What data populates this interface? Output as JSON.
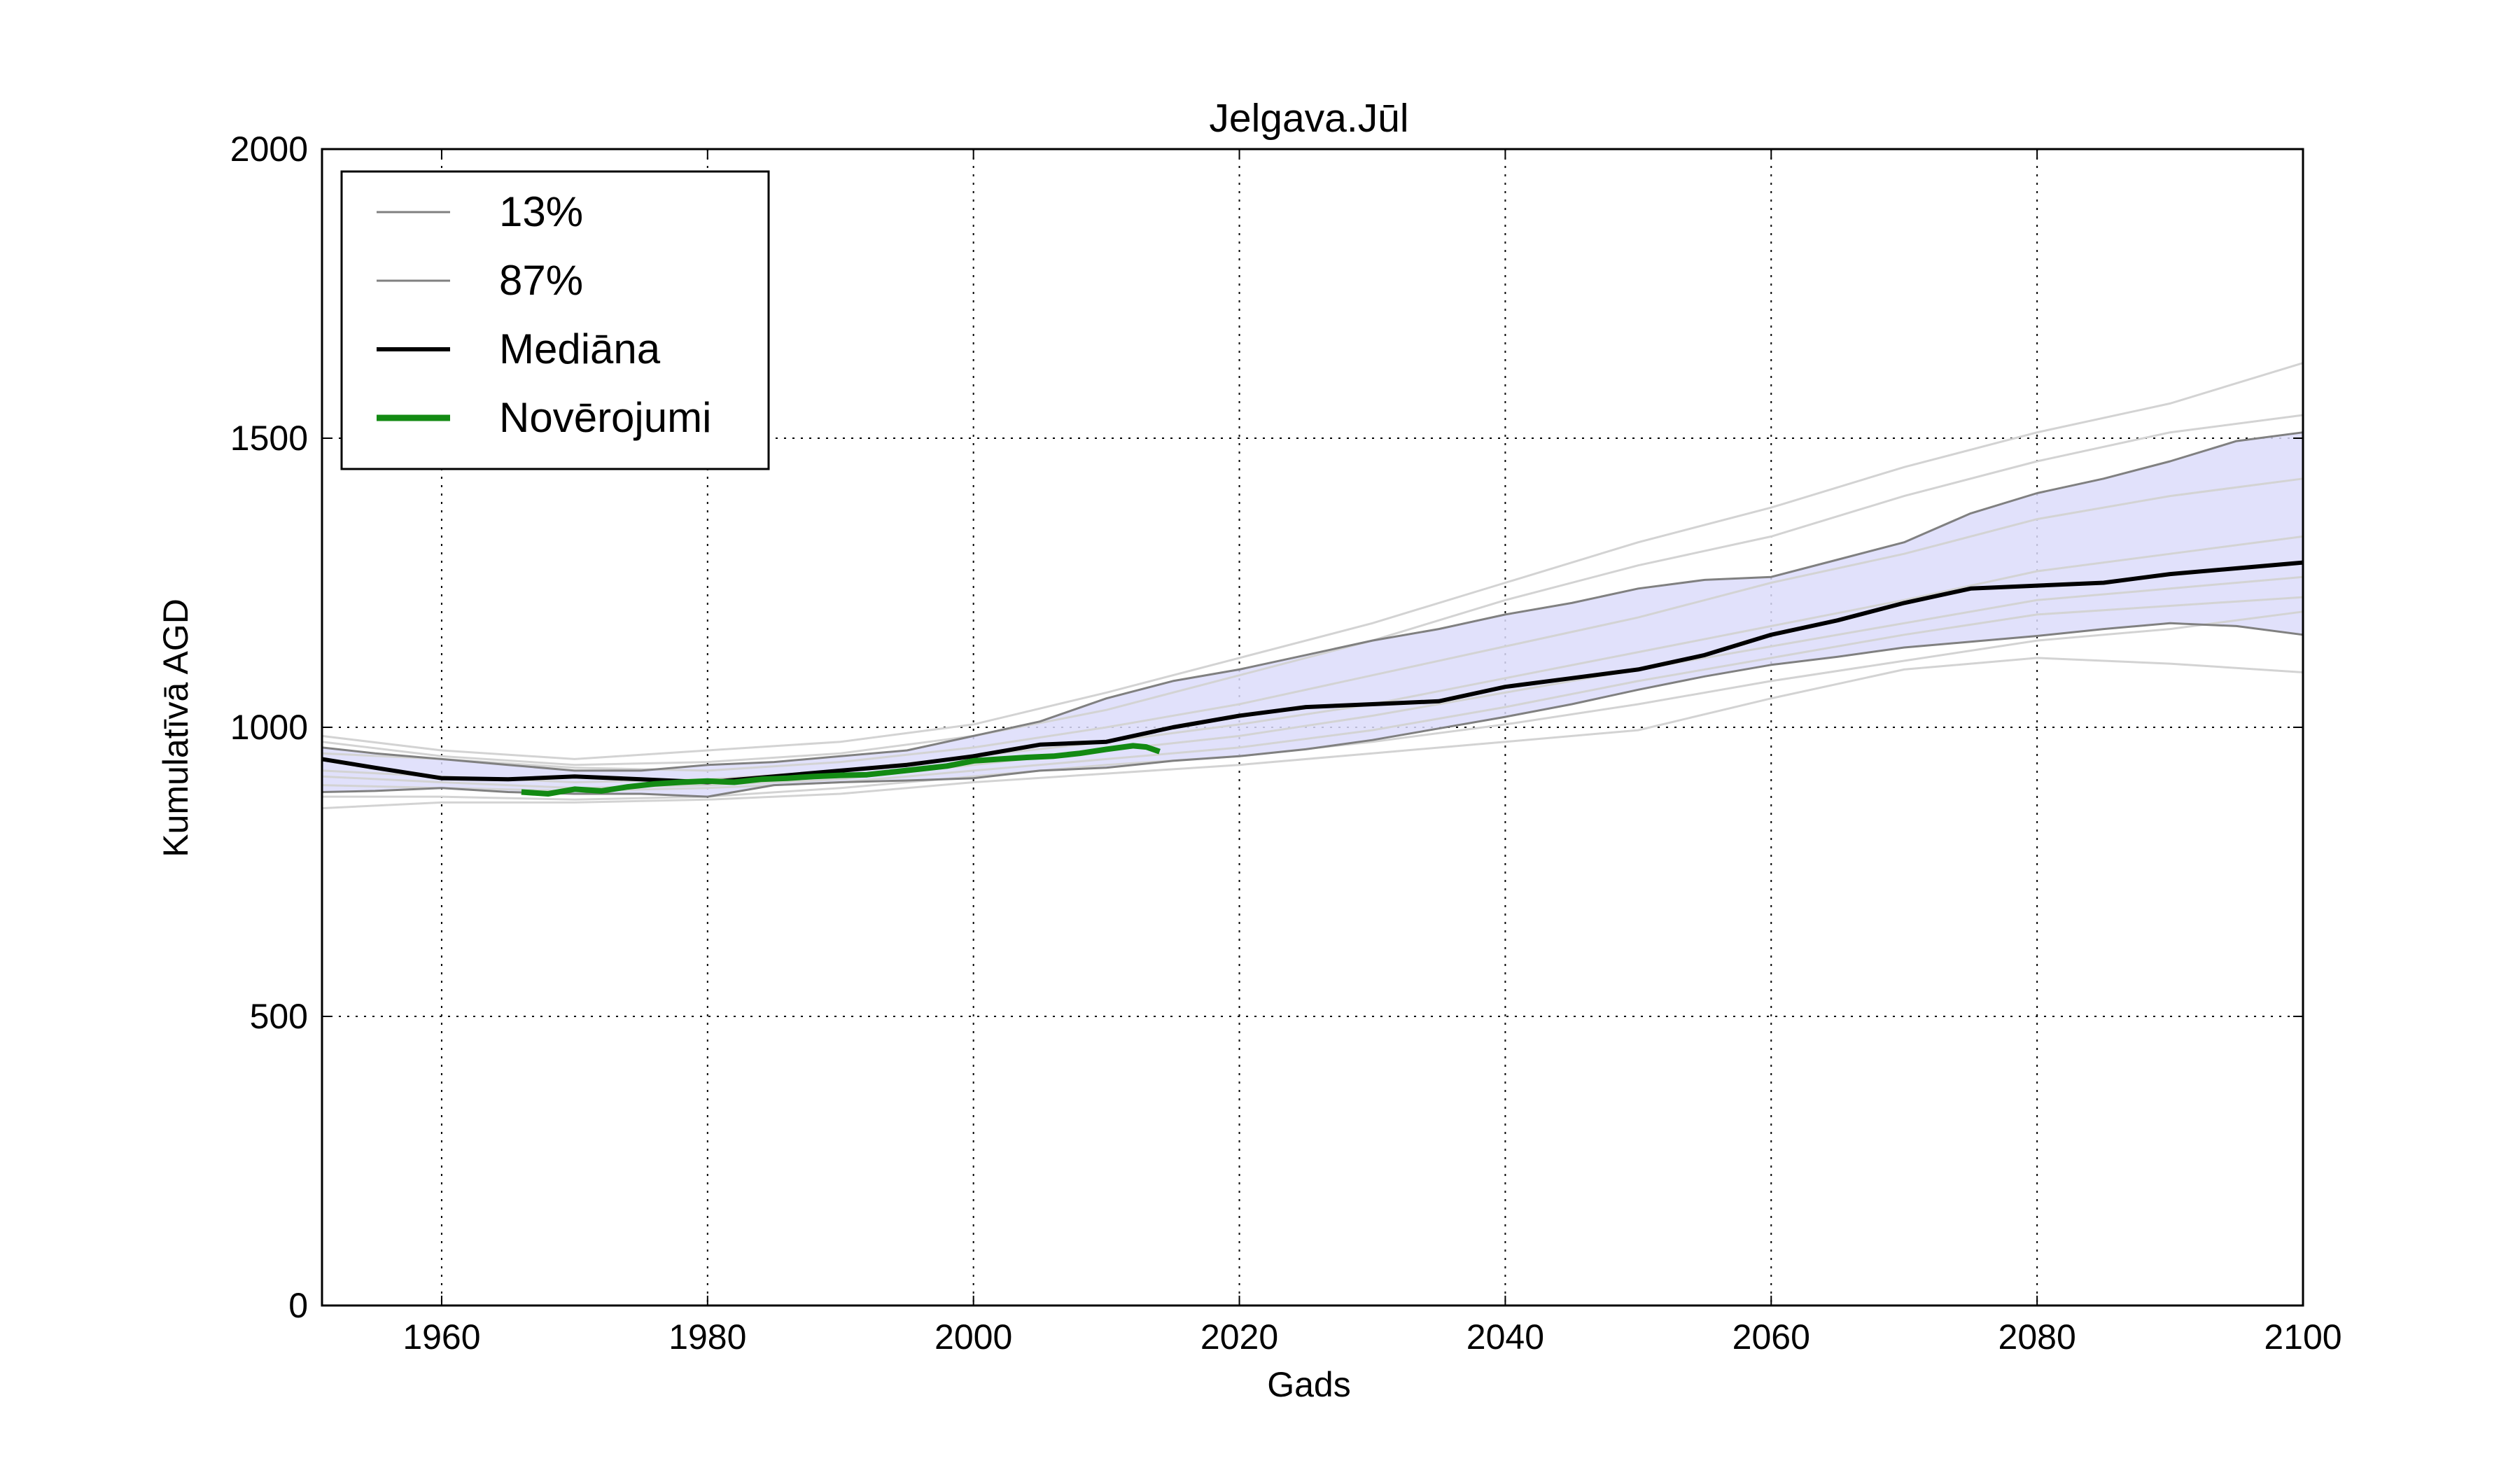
{
  "chart_data": {
    "type": "line",
    "title": "Jelgava.Jūl",
    "xlabel": "Gads",
    "ylabel": "Kumulatīvā AGD",
    "xlim": [
      1951,
      2100
    ],
    "ylim": [
      0,
      2000
    ],
    "xticks": [
      1960,
      1980,
      2000,
      2020,
      2040,
      2060,
      2080,
      2100
    ],
    "yticks": [
      0,
      500,
      1000,
      1500,
      2000
    ],
    "grid": true,
    "legend_position": "top-left",
    "colors": {
      "band_fill": "#dcdcfa",
      "percentile_line": "#808080",
      "ensemble_line": "#d3d3d3",
      "median": "#000000",
      "observations": "#138a13"
    },
    "legend": [
      {
        "label": "13%",
        "color": "#808080",
        "style": "thin"
      },
      {
        "label": "87%",
        "color": "#808080",
        "style": "thin"
      },
      {
        "label": "Mediāna",
        "color": "#000000",
        "style": "thick"
      },
      {
        "label": "Novērojumi",
        "color": "#138a13",
        "style": "thicker"
      }
    ],
    "series": [
      {
        "name": "13%",
        "role": "lower",
        "x": [
          1951,
          1955,
          1960,
          1965,
          1970,
          1975,
          1980,
          1985,
          1990,
          1995,
          2000,
          2005,
          2010,
          2015,
          2020,
          2025,
          2030,
          2035,
          2040,
          2045,
          2050,
          2055,
          2060,
          2065,
          2070,
          2075,
          2080,
          2085,
          2090,
          2095,
          2100
        ],
        "y": [
          888,
          890,
          895,
          888,
          885,
          885,
          880,
          900,
          905,
          908,
          912,
          925,
          930,
          942,
          950,
          962,
          978,
          998,
          1018,
          1040,
          1065,
          1088,
          1108,
          1122,
          1138,
          1148,
          1158,
          1170,
          1180,
          1175,
          1160
        ]
      },
      {
        "name": "87%",
        "role": "upper",
        "x": [
          1951,
          1955,
          1960,
          1965,
          1970,
          1975,
          1980,
          1985,
          1990,
          1995,
          2000,
          2005,
          2010,
          2015,
          2020,
          2025,
          2030,
          2035,
          2040,
          2045,
          2050,
          2055,
          2060,
          2065,
          2070,
          2075,
          2080,
          2085,
          2090,
          2095,
          2100
        ],
        "y": [
          965,
          955,
          945,
          935,
          925,
          925,
          935,
          940,
          950,
          960,
          985,
          1010,
          1050,
          1080,
          1100,
          1125,
          1150,
          1170,
          1195,
          1215,
          1240,
          1255,
          1260,
          1290,
          1320,
          1370,
          1405,
          1430,
          1460,
          1495,
          1510
        ]
      },
      {
        "name": "Mediāna",
        "role": "median",
        "x": [
          1951,
          1955,
          1960,
          1965,
          1970,
          1975,
          1980,
          1985,
          1990,
          1995,
          2000,
          2005,
          2010,
          2015,
          2020,
          2025,
          2030,
          2035,
          2040,
          2045,
          2050,
          2055,
          2060,
          2065,
          2070,
          2075,
          2080,
          2085,
          2090,
          2095,
          2100
        ],
        "y": [
          945,
          930,
          912,
          910,
          915,
          910,
          905,
          915,
          925,
          935,
          950,
          970,
          975,
          1000,
          1020,
          1035,
          1040,
          1045,
          1070,
          1085,
          1100,
          1125,
          1160,
          1185,
          1215,
          1240,
          1245,
          1250,
          1265,
          1275,
          1285
        ]
      },
      {
        "name": "Novērojumi",
        "role": "observations",
        "x": [
          1966,
          1968,
          1970,
          1972,
          1974,
          1976,
          1978,
          1980,
          1982,
          1984,
          1986,
          1988,
          1990,
          1992,
          1994,
          1996,
          1998,
          2000,
          2002,
          2004,
          2006,
          2008,
          2010,
          2012,
          2013,
          2014
        ],
        "y": [
          888,
          885,
          893,
          890,
          897,
          902,
          905,
          907,
          905,
          910,
          912,
          915,
          917,
          918,
          923,
          928,
          933,
          942,
          945,
          948,
          950,
          955,
          962,
          968,
          966,
          958
        ]
      }
    ],
    "ensemble": [
      {
        "x": [
          1951,
          1960,
          1970,
          1980,
          1990,
          2000,
          2010,
          2020,
          2030,
          2040,
          2050,
          2060,
          2070,
          2080,
          2090,
          2100
        ],
        "y": [
          985,
          960,
          945,
          960,
          975,
          1005,
          1060,
          1120,
          1180,
          1250,
          1320,
          1380,
          1450,
          1510,
          1560,
          1630
        ]
      },
      {
        "x": [
          1951,
          1960,
          1970,
          1980,
          1990,
          2000,
          2010,
          2020,
          2030,
          2040,
          2050,
          2060,
          2070,
          2080,
          2090,
          2100
        ],
        "y": [
          975,
          950,
          935,
          940,
          955,
          985,
          1030,
          1090,
          1150,
          1220,
          1280,
          1330,
          1400,
          1460,
          1510,
          1540
        ]
      },
      {
        "x": [
          1951,
          1960,
          1970,
          1980,
          1990,
          2000,
          2010,
          2020,
          2030,
          2040,
          2050,
          2060,
          2070,
          2080,
          2090,
          2100
        ],
        "y": [
          955,
          945,
          930,
          925,
          940,
          965,
          1000,
          1040,
          1090,
          1140,
          1190,
          1250,
          1300,
          1360,
          1400,
          1430
        ]
      },
      {
        "x": [
          1951,
          1960,
          1970,
          1980,
          1990,
          2000,
          2010,
          2020,
          2030,
          2040,
          2050,
          2060,
          2070,
          2080,
          2090,
          2100
        ],
        "y": [
          925,
          915,
          905,
          910,
          925,
          950,
          975,
          1005,
          1040,
          1085,
          1130,
          1175,
          1220,
          1270,
          1300,
          1330
        ]
      },
      {
        "x": [
          1951,
          1960,
          1970,
          1980,
          1990,
          2000,
          2010,
          2020,
          2030,
          2040,
          2050,
          2060,
          2070,
          2080,
          2090,
          2100
        ],
        "y": [
          915,
          905,
          895,
          900,
          910,
          935,
          960,
          985,
          1020,
          1060,
          1100,
          1140,
          1180,
          1220,
          1240,
          1260
        ]
      },
      {
        "x": [
          1951,
          1960,
          1970,
          1980,
          1990,
          2000,
          2010,
          2020,
          2030,
          2040,
          2050,
          2060,
          2070,
          2080,
          2090,
          2100
        ],
        "y": [
          900,
          895,
          890,
          895,
          905,
          925,
          945,
          965,
          995,
          1035,
          1080,
          1120,
          1160,
          1195,
          1210,
          1225
        ]
      },
      {
        "x": [
          1951,
          1960,
          1970,
          1980,
          1990,
          2000,
          2010,
          2020,
          2030,
          2040,
          2050,
          2060,
          2070,
          2080,
          2090,
          2100
        ],
        "y": [
          880,
          880,
          875,
          880,
          895,
          915,
          935,
          950,
          975,
          1005,
          1040,
          1080,
          1115,
          1150,
          1170,
          1200
        ]
      },
      {
        "x": [
          1951,
          1960,
          1970,
          1980,
          1990,
          2000,
          2010,
          2020,
          2030,
          2040,
          2050,
          2060,
          2070,
          2080,
          2090,
          2100
        ],
        "y": [
          860,
          870,
          870,
          875,
          885,
          905,
          920,
          935,
          955,
          975,
          995,
          1050,
          1100,
          1120,
          1110,
          1095
        ]
      }
    ]
  }
}
